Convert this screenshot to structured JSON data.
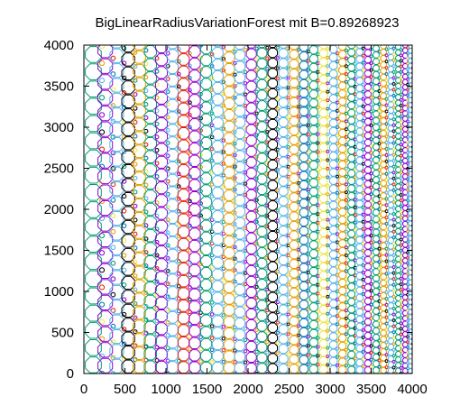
{
  "chart_data": {
    "type": "scatter",
    "title": "BigLinearRadiusVariationForest mit B=0.89268923",
    "xlabel": "",
    "ylabel": "",
    "xlim": [
      0,
      4000
    ],
    "ylim": [
      0,
      4000
    ],
    "xticks": [
      0,
      500,
      1000,
      1500,
      2000,
      2500,
      3000,
      3500,
      4000
    ],
    "yticks": [
      0,
      500,
      1000,
      1500,
      2000,
      2500,
      3000,
      3500,
      4000
    ],
    "xtick_labels": [
      "0",
      "500",
      "1000",
      "1500",
      "2000",
      "2500",
      "3000",
      "3500",
      "4000"
    ],
    "ytick_labels": [
      "0",
      "500",
      "1000",
      "1500",
      "2000",
      "2500",
      "3000",
      "3500",
      "4000"
    ],
    "grid": false,
    "legend": false,
    "marker_shape": "octagon",
    "markers_are_outlines": true,
    "circle_columns": [
      {
        "x": 115,
        "r": 105,
        "color": "#009e73"
      },
      {
        "x": 260,
        "r": 96,
        "color": "#9400d3"
      },
      {
        "x": 400,
        "r": 90,
        "color": "#56b4e9"
      },
      {
        "x": 540,
        "r": 85,
        "color": "#000000"
      },
      {
        "x": 675,
        "r": 82,
        "color": "#e69f00"
      },
      {
        "x": 810,
        "r": 80,
        "color": "#009e73"
      },
      {
        "x": 945,
        "r": 78,
        "color": "#9400d3"
      },
      {
        "x": 1080,
        "r": 76,
        "color": "#56b4e9"
      },
      {
        "x": 1215,
        "r": 75,
        "color": "#e51e10"
      },
      {
        "x": 1350,
        "r": 74,
        "color": "#9400d3"
      },
      {
        "x": 1490,
        "r": 72,
        "color": "#009e73"
      },
      {
        "x": 1630,
        "r": 71,
        "color": "#56b4e9"
      },
      {
        "x": 1770,
        "r": 70,
        "color": "#e69f00"
      },
      {
        "x": 1900,
        "r": 68,
        "color": "#56b4e9"
      },
      {
        "x": 2040,
        "r": 66,
        "color": "#9400d3"
      },
      {
        "x": 2170,
        "r": 64,
        "color": "#009e73"
      },
      {
        "x": 2300,
        "r": 62,
        "color": "#000000"
      },
      {
        "x": 2430,
        "r": 60,
        "color": "#56b4e9"
      },
      {
        "x": 2560,
        "r": 58,
        "color": "#e69f00"
      },
      {
        "x": 2680,
        "r": 56,
        "color": "#0072b2"
      },
      {
        "x": 2800,
        "r": 54,
        "color": "#009e73"
      },
      {
        "x": 2920,
        "r": 52,
        "color": "#f0e442"
      },
      {
        "x": 3040,
        "r": 50,
        "color": "#56b4e9"
      },
      {
        "x": 3150,
        "r": 48,
        "color": "#e69f00"
      },
      {
        "x": 3260,
        "r": 46,
        "color": "#009e73"
      },
      {
        "x": 3360,
        "r": 44,
        "color": "#56b4e9"
      },
      {
        "x": 3460,
        "r": 42,
        "color": "#9400d3"
      },
      {
        "x": 3560,
        "r": 40,
        "color": "#009e73"
      },
      {
        "x": 3650,
        "r": 38,
        "color": "#e69f00"
      },
      {
        "x": 3740,
        "r": 36,
        "color": "#56b4e9"
      },
      {
        "x": 3830,
        "r": 34,
        "color": "#009e73"
      },
      {
        "x": 3915,
        "r": 32,
        "color": "#9400d3"
      },
      {
        "x": 3980,
        "r": 30,
        "color": "#56b4e9"
      }
    ],
    "palette": [
      "#9400d3",
      "#009e73",
      "#56b4e9",
      "#e69f00",
      "#f0e442",
      "#0072b2",
      "#e51e10",
      "#000000"
    ]
  }
}
